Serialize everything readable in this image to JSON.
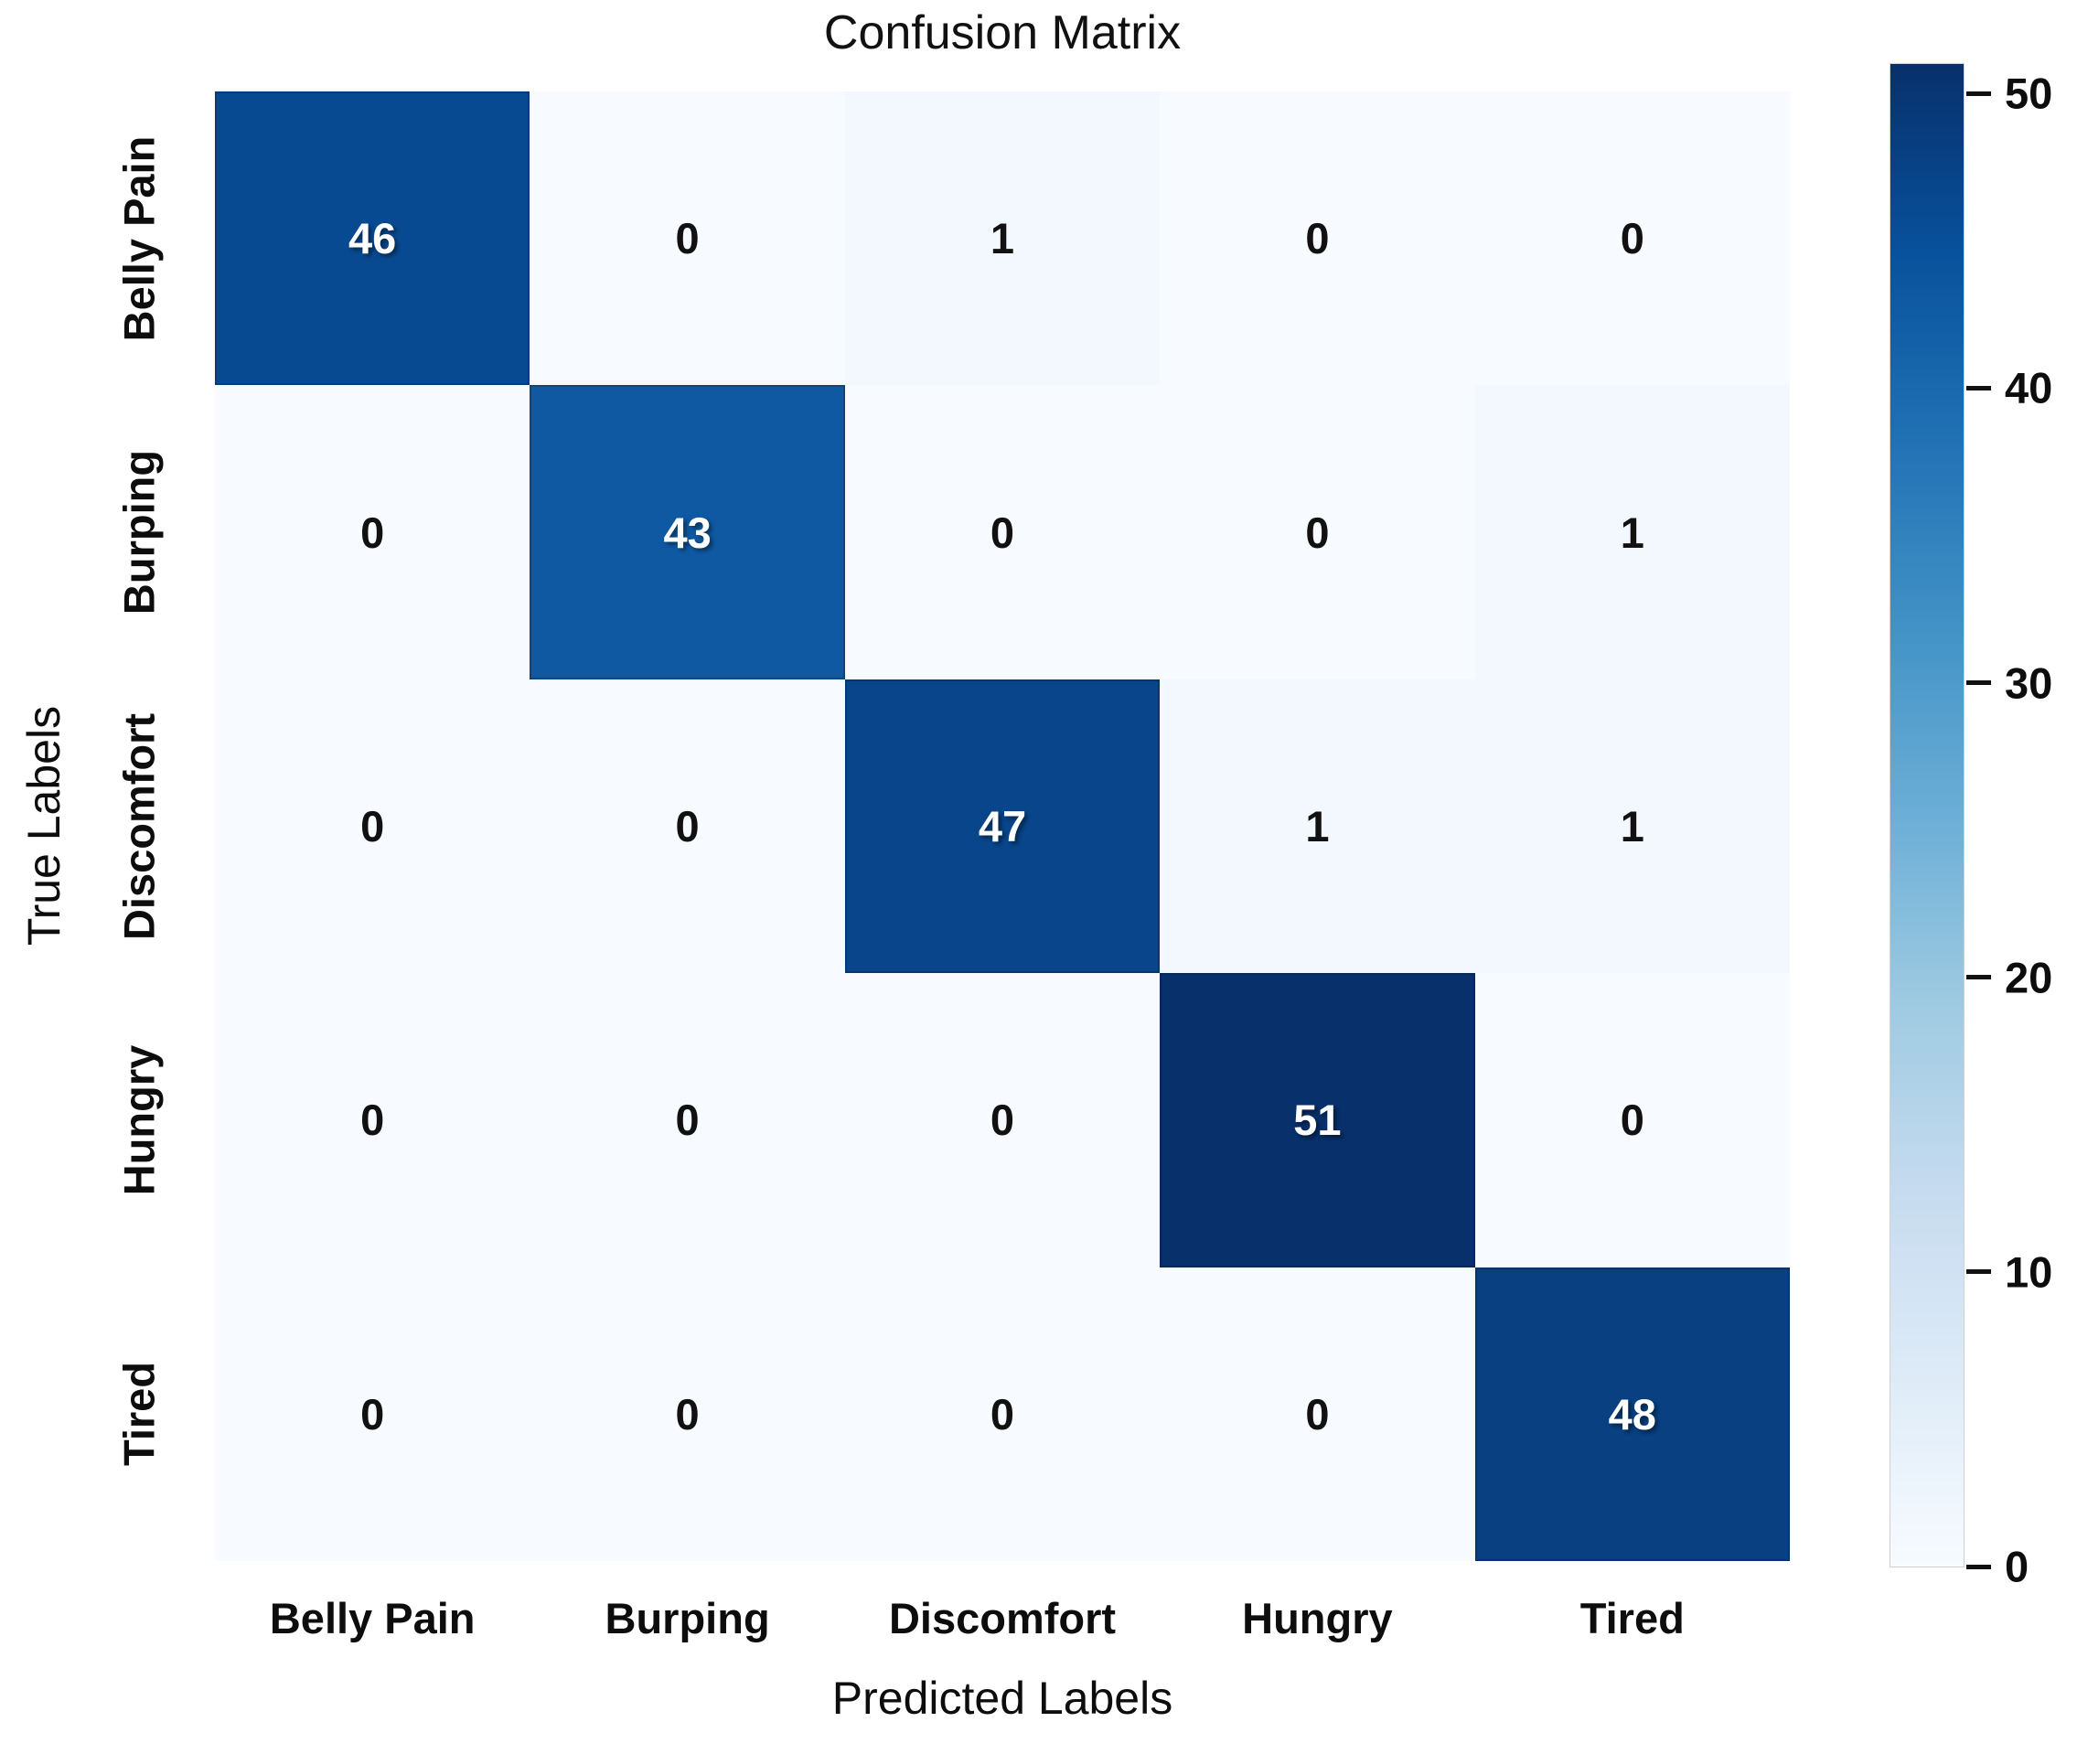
{
  "chart_data": {
    "type": "heatmap",
    "title": "Confusion Matrix",
    "xlabel": "Predicted Labels",
    "ylabel": "True Labels",
    "x_categories": [
      "Belly Pain",
      "Burping",
      "Discomfort",
      "Hungry",
      "Tired"
    ],
    "y_categories": [
      "Belly Pain",
      "Burping",
      "Discomfort",
      "Hungry",
      "Tired"
    ],
    "matrix": [
      [
        46,
        0,
        1,
        0,
        0
      ],
      [
        0,
        43,
        0,
        0,
        1
      ],
      [
        0,
        0,
        47,
        1,
        1
      ],
      [
        0,
        0,
        0,
        51,
        0
      ],
      [
        0,
        0,
        0,
        0,
        48
      ]
    ],
    "colorbar": {
      "vmin": 0,
      "vmax": 51,
      "ticks": [
        0,
        10,
        20,
        30,
        40,
        50
      ],
      "colormap": "Blues",
      "position": "right",
      "gradient_stops": [
        [
          0.0,
          "#f7fbff"
        ],
        [
          0.125,
          "#deebf7"
        ],
        [
          0.25,
          "#c6dbef"
        ],
        [
          0.375,
          "#9ecae1"
        ],
        [
          0.5,
          "#6baed6"
        ],
        [
          0.625,
          "#4292c6"
        ],
        [
          0.75,
          "#2171b5"
        ],
        [
          0.875,
          "#08519c"
        ],
        [
          1.0,
          "#08306b"
        ]
      ]
    },
    "text_colors": {
      "on_dark": "#ffffff",
      "on_light": "#111111"
    },
    "grid": false,
    "legend_position": "right"
  }
}
